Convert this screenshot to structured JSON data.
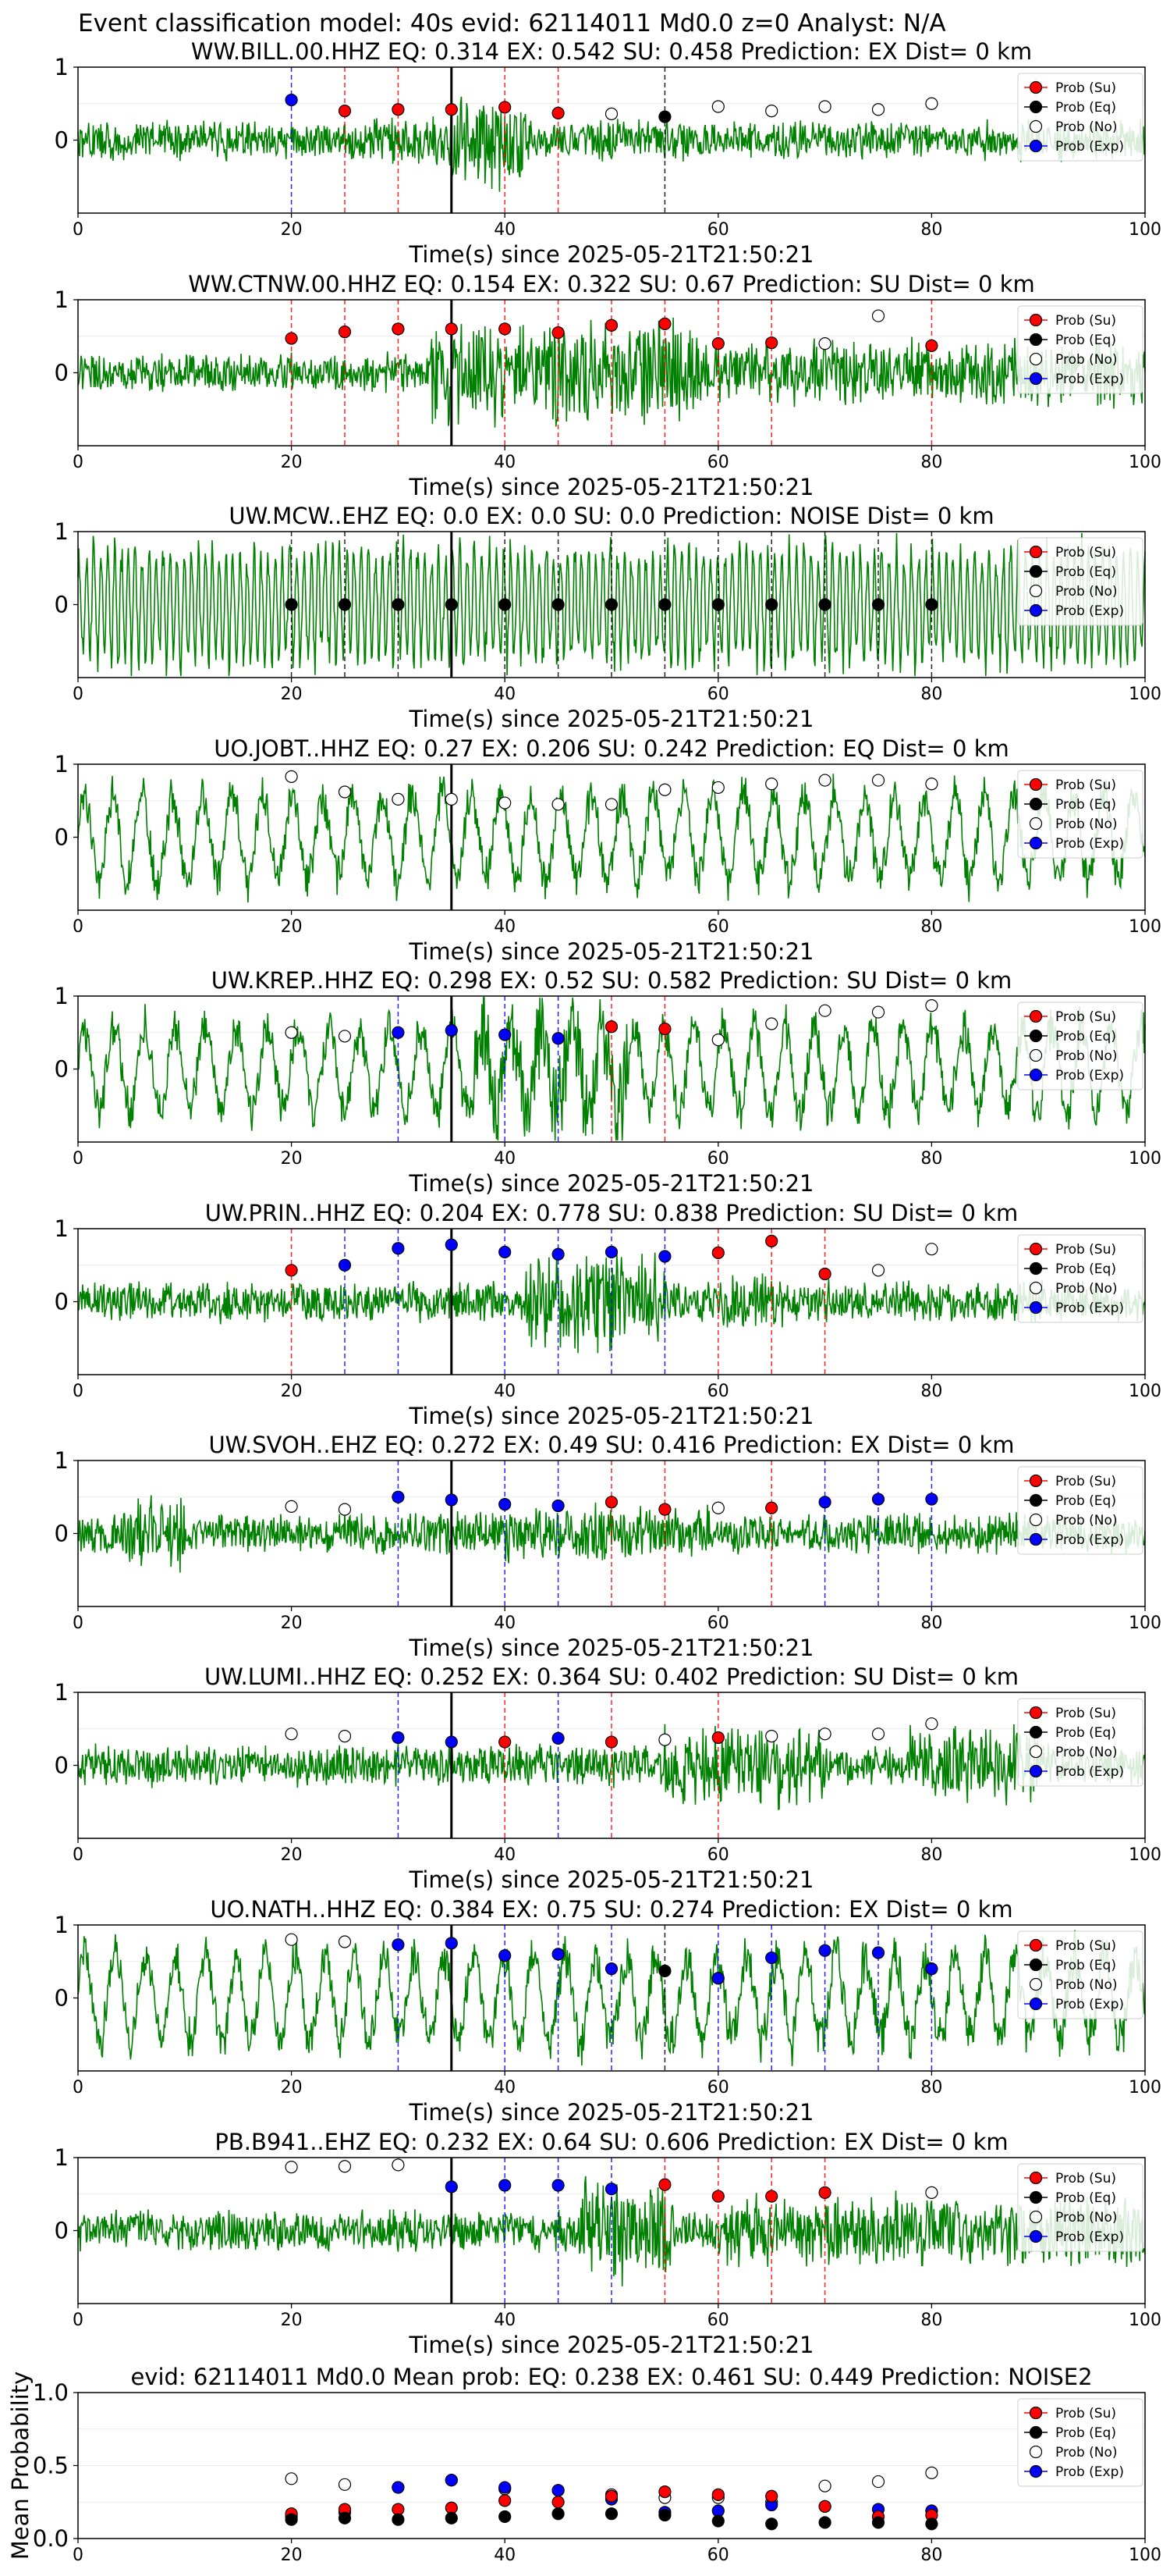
{
  "figure_title": "Event classification model: 40s evid: 62114011 Md0.0 z=0 Analyst: N/A",
  "colors": {
    "su": "#ff0000",
    "eq": "#000000",
    "no": "#ffffff",
    "exp": "#0000ff",
    "wave": "#008000",
    "pick": "#000000"
  },
  "legend_labels": [
    "Prob (Su)",
    "Prob (Eq)",
    "Prob (No)",
    "Prob (Exp)"
  ],
  "chart_data": [
    {
      "type": "scatter",
      "title": "WW.BILL.00.HHZ   EQ: 0.314  EX: 0.542  SU: 0.458   Prediction: EX    Dist= 0 km",
      "xlabel": "Time(s) since 2025-05-21T21:50:21",
      "xlim": [
        0,
        100
      ],
      "ylim": [
        -1,
        1
      ],
      "xticks": [
        "0",
        "20",
        "40",
        "60",
        "80",
        "100"
      ],
      "yticks": [
        "1",
        "0"
      ],
      "pick_time": 35,
      "wave_seed": 1,
      "wave_style": "noisy",
      "wave_bursts": [
        [
          35,
          42,
          2.4
        ],
        [
          28,
          35,
          1.3
        ]
      ],
      "series": [
        {
          "name": "Prob (Exp)",
          "x": [
            20
          ],
          "y": [
            0.55
          ]
        },
        {
          "name": "Prob (Su)",
          "x": [
            25,
            30,
            35,
            40,
            45
          ],
          "y": [
            0.4,
            0.42,
            0.42,
            0.45,
            0.37
          ]
        },
        {
          "name": "Prob (Eq)",
          "x": [
            55
          ],
          "y": [
            0.32
          ]
        },
        {
          "name": "Prob (No)",
          "x": [
            50,
            60,
            65,
            70,
            75,
            80
          ],
          "y": [
            0.36,
            0.46,
            0.4,
            0.46,
            0.42,
            0.5
          ]
        }
      ]
    },
    {
      "type": "scatter",
      "title": "WW.CTNW.00.HHZ   EQ: 0.154  EX: 0.322  SU: 0.67   Prediction: SU    Dist= 0 km",
      "xlabel": "Time(s) since 2025-05-21T21:50:21",
      "xlim": [
        0,
        100
      ],
      "ylim": [
        -1,
        1
      ],
      "xticks": [
        "0",
        "20",
        "40",
        "60",
        "80",
        "100"
      ],
      "yticks": [
        "1",
        "0"
      ],
      "pick_time": 35,
      "wave_seed": 2,
      "wave_style": "noisy",
      "wave_bursts": [
        [
          33,
          58,
          2.6
        ],
        [
          58,
          100,
          1.6
        ]
      ],
      "series": [
        {
          "name": "Prob (Su)",
          "x": [
            20,
            25,
            30,
            35,
            40,
            45,
            50,
            55,
            60,
            65,
            80
          ],
          "y": [
            0.47,
            0.56,
            0.6,
            0.6,
            0.6,
            0.55,
            0.65,
            0.67,
            0.4,
            0.41,
            0.37
          ]
        },
        {
          "name": "Prob (No)",
          "x": [
            70,
            75
          ],
          "y": [
            0.4,
            0.78
          ]
        }
      ]
    },
    {
      "type": "scatter",
      "title": "UW.MCW..EHZ   EQ: 0.0  EX: 0.0  SU: 0.0   Prediction: NOISE    Dist= 0 km",
      "xlabel": "Time(s) since 2025-05-21T21:50:21",
      "xlim": [
        0,
        100
      ],
      "ylim": [
        -1,
        1
      ],
      "xticks": [
        "0",
        "20",
        "40",
        "60",
        "80",
        "100"
      ],
      "yticks": [
        "1",
        "0"
      ],
      "pick_time": 35,
      "wave_seed": 3,
      "wave_style": "periodic",
      "wave_bursts": [],
      "series": [
        {
          "name": "Prob (Eq)",
          "x": [
            20,
            25,
            30,
            35,
            40,
            45,
            50,
            55,
            60,
            65,
            70,
            75,
            80
          ],
          "y": [
            0,
            0,
            0,
            0,
            0,
            0,
            0,
            0,
            0,
            0,
            0,
            0,
            0
          ]
        }
      ]
    },
    {
      "type": "scatter",
      "title": "UO.JOBT..HHZ   EQ: 0.27  EX: 0.206  SU: 0.242   Prediction: EQ    Dist= 0 km",
      "xlabel": "Time(s) since 2025-05-21T21:50:21",
      "xlim": [
        0,
        100
      ],
      "ylim": [
        -1,
        1
      ],
      "xticks": [
        "0",
        "20",
        "40",
        "60",
        "80",
        "100"
      ],
      "yticks": [
        "1",
        "0"
      ],
      "pick_time": 35,
      "wave_seed": 4,
      "wave_style": "slow",
      "wave_bursts": [],
      "series": [
        {
          "name": "Prob (No)",
          "x": [
            20,
            25,
            30,
            35,
            40,
            45,
            50,
            55,
            60,
            65,
            70,
            75,
            80
          ],
          "y": [
            0.83,
            0.62,
            0.52,
            0.52,
            0.47,
            0.45,
            0.45,
            0.65,
            0.68,
            0.73,
            0.78,
            0.78,
            0.73
          ]
        }
      ]
    },
    {
      "type": "scatter",
      "title": "UW.KREP..HHZ   EQ: 0.298  EX: 0.52  SU: 0.582   Prediction: SU    Dist= 0 km",
      "xlabel": "Time(s) since 2025-05-21T21:50:21",
      "xlim": [
        0,
        100
      ],
      "ylim": [
        -1,
        1
      ],
      "xticks": [
        "0",
        "20",
        "40",
        "60",
        "80",
        "100"
      ],
      "yticks": [
        "1",
        "0"
      ],
      "pick_time": 35,
      "wave_seed": 5,
      "wave_style": "slow",
      "wave_bursts": [
        [
          37,
          52,
          2.6
        ]
      ],
      "series": [
        {
          "name": "Prob (No)",
          "x": [
            20,
            25,
            60,
            65,
            70,
            75,
            80
          ],
          "y": [
            0.5,
            0.45,
            0.4,
            0.62,
            0.8,
            0.78,
            0.87
          ]
        },
        {
          "name": "Prob (Exp)",
          "x": [
            30,
            35,
            40,
            45
          ],
          "y": [
            0.5,
            0.53,
            0.47,
            0.42
          ]
        },
        {
          "name": "Prob (Su)",
          "x": [
            50,
            55
          ],
          "y": [
            0.58,
            0.55
          ]
        }
      ]
    },
    {
      "type": "scatter",
      "title": "UW.PRIN..HHZ   EQ: 0.204  EX: 0.778  SU: 0.838   Prediction: SU    Dist= 0 km",
      "xlabel": "Time(s) since 2025-05-21T21:50:21",
      "xlim": [
        0,
        100
      ],
      "ylim": [
        -1,
        1
      ],
      "xticks": [
        "0",
        "20",
        "40",
        "60",
        "80",
        "100"
      ],
      "yticks": [
        "1",
        "0"
      ],
      "pick_time": 35,
      "wave_seed": 6,
      "wave_style": "noisy",
      "wave_bursts": [
        [
          42,
          55,
          2.5
        ],
        [
          60,
          66,
          1.4
        ]
      ],
      "series": [
        {
          "name": "Prob (Su)",
          "x": [
            20,
            60,
            65,
            70
          ],
          "y": [
            0.43,
            0.67,
            0.83,
            0.38
          ]
        },
        {
          "name": "Prob (Exp)",
          "x": [
            25,
            30,
            35,
            40,
            45,
            50,
            55
          ],
          "y": [
            0.5,
            0.73,
            0.78,
            0.68,
            0.65,
            0.68,
            0.62
          ]
        },
        {
          "name": "Prob (No)",
          "x": [
            75,
            80
          ],
          "y": [
            0.43,
            0.72
          ]
        }
      ]
    },
    {
      "type": "scatter",
      "title": "UW.SVOH..EHZ   EQ: 0.272  EX: 0.49  SU: 0.416   Prediction: EX    Dist= 0 km",
      "xlabel": "Time(s) since 2025-05-21T21:50:21",
      "xlim": [
        0,
        100
      ],
      "ylim": [
        -1,
        1
      ],
      "xticks": [
        "0",
        "20",
        "40",
        "60",
        "80",
        "100"
      ],
      "yticks": [
        "1",
        "0"
      ],
      "pick_time": 35,
      "wave_seed": 7,
      "wave_style": "noisy",
      "wave_bursts": [
        [
          4,
          10,
          2.0
        ],
        [
          40,
          60,
          1.4
        ]
      ],
      "series": [
        {
          "name": "Prob (No)",
          "x": [
            20,
            25,
            60
          ],
          "y": [
            0.37,
            0.33,
            0.35
          ]
        },
        {
          "name": "Prob (Exp)",
          "x": [
            30,
            35,
            40,
            45,
            70,
            75,
            80
          ],
          "y": [
            0.5,
            0.46,
            0.4,
            0.38,
            0.43,
            0.47,
            0.47
          ]
        },
        {
          "name": "Prob (Su)",
          "x": [
            50,
            55,
            65
          ],
          "y": [
            0.43,
            0.33,
            0.35
          ]
        }
      ]
    },
    {
      "type": "scatter",
      "title": "UW.LUMI..HHZ   EQ: 0.252  EX: 0.364  SU: 0.402   Prediction: SU    Dist= 0 km",
      "xlabel": "Time(s) since 2025-05-21T21:50:21",
      "xlim": [
        0,
        100
      ],
      "ylim": [
        -1,
        1
      ],
      "xticks": [
        "0",
        "20",
        "40",
        "60",
        "80",
        "100"
      ],
      "yticks": [
        "1",
        "0"
      ],
      "pick_time": 35,
      "wave_seed": 8,
      "wave_style": "noisy",
      "wave_bursts": [
        [
          55,
          70,
          2.0
        ],
        [
          78,
          90,
          2.0
        ]
      ],
      "series": [
        {
          "name": "Prob (No)",
          "x": [
            20,
            25,
            55,
            65,
            70,
            75,
            80
          ],
          "y": [
            0.43,
            0.4,
            0.35,
            0.4,
            0.43,
            0.43,
            0.57
          ]
        },
        {
          "name": "Prob (Exp)",
          "x": [
            30,
            35,
            45
          ],
          "y": [
            0.38,
            0.32,
            0.37
          ]
        },
        {
          "name": "Prob (Su)",
          "x": [
            40,
            50,
            60
          ],
          "y": [
            0.32,
            0.32,
            0.38
          ]
        }
      ]
    },
    {
      "type": "scatter",
      "title": "UO.NATH..HHZ   EQ: 0.384  EX: 0.75  SU: 0.274   Prediction: EX    Dist= 0 km",
      "xlabel": "Time(s) since 2025-05-21T21:50:21",
      "xlim": [
        0,
        100
      ],
      "ylim": [
        -1,
        1
      ],
      "xticks": [
        "0",
        "20",
        "40",
        "60",
        "80",
        "100"
      ],
      "yticks": [
        "1",
        "0"
      ],
      "pick_time": 35,
      "wave_seed": 9,
      "wave_style": "slow",
      "wave_bursts": [
        [
          45,
          100,
          1.2
        ]
      ],
      "series": [
        {
          "name": "Prob (No)",
          "x": [
            20,
            25
          ],
          "y": [
            0.8,
            0.77
          ]
        },
        {
          "name": "Prob (Exp)",
          "x": [
            30,
            35,
            40,
            45,
            50,
            60,
            65,
            70,
            75,
            80
          ],
          "y": [
            0.73,
            0.75,
            0.58,
            0.6,
            0.4,
            0.27,
            0.55,
            0.65,
            0.62,
            0.4
          ]
        },
        {
          "name": "Prob (Eq)",
          "x": [
            55
          ],
          "y": [
            0.37
          ]
        }
      ]
    },
    {
      "type": "scatter",
      "title": "PB.B941..EHZ   EQ: 0.232  EX: 0.64  SU: 0.606   Prediction: EX    Dist= 0 km",
      "xlabel": "Time(s) since 2025-05-21T21:50:21",
      "xlim": [
        0,
        100
      ],
      "ylim": [
        -1,
        1
      ],
      "xticks": [
        "0",
        "20",
        "40",
        "60",
        "80",
        "100"
      ],
      "yticks": [
        "1",
        "0"
      ],
      "pick_time": 35,
      "wave_seed": 10,
      "wave_style": "noisy",
      "wave_bursts": [
        [
          47,
          56,
          2.6
        ],
        [
          60,
          100,
          1.8
        ]
      ],
      "series": [
        {
          "name": "Prob (No)",
          "x": [
            20,
            25,
            30,
            80
          ],
          "y": [
            0.87,
            0.88,
            0.9,
            0.52
          ]
        },
        {
          "name": "Prob (Exp)",
          "x": [
            35,
            40,
            45,
            50
          ],
          "y": [
            0.6,
            0.62,
            0.62,
            0.57
          ]
        },
        {
          "name": "Prob (Su)",
          "x": [
            55,
            60,
            65,
            70
          ],
          "y": [
            0.63,
            0.47,
            0.47,
            0.52
          ]
        }
      ]
    },
    {
      "type": "scatter",
      "title": "evid: 62114011  Md0.0   Mean prob:   EQ: 0.238  EX: 0.461  SU: 0.449   Prediction: NOISE2",
      "xlabel": "",
      "ylabel": "Mean Probability",
      "xlim": [
        0,
        100
      ],
      "ylim": [
        0,
        1
      ],
      "xticks": [
        "0",
        "20",
        "40",
        "60",
        "80",
        "100"
      ],
      "yticks": [
        "1.0",
        "0.5",
        "0.0"
      ],
      "pick_time": null,
      "series": [
        {
          "name": "Prob (No)",
          "x": [
            20,
            25,
            30,
            35,
            40,
            45,
            50,
            55,
            60,
            65,
            70,
            75,
            80
          ],
          "y": [
            0.41,
            0.37,
            0.35,
            0.4,
            0.34,
            0.33,
            0.3,
            0.28,
            0.28,
            0.25,
            0.36,
            0.39,
            0.45
          ]
        },
        {
          "name": "Prob (Exp)",
          "x": [
            20,
            25,
            30,
            35,
            40,
            45,
            50,
            55,
            60,
            65,
            70,
            75,
            80
          ],
          "y": [
            0.15,
            0.18,
            0.35,
            0.4,
            0.35,
            0.33,
            0.27,
            0.18,
            0.19,
            0.23,
            0.22,
            0.2,
            0.19
          ]
        },
        {
          "name": "Prob (Su)",
          "x": [
            20,
            25,
            30,
            35,
            40,
            45,
            50,
            55,
            60,
            65,
            70,
            75,
            80
          ],
          "y": [
            0.17,
            0.2,
            0.2,
            0.21,
            0.26,
            0.25,
            0.29,
            0.32,
            0.3,
            0.29,
            0.22,
            0.15,
            0.16
          ]
        },
        {
          "name": "Prob (Eq)",
          "x": [
            20,
            25,
            30,
            35,
            40,
            45,
            50,
            55,
            60,
            65,
            70,
            75,
            80
          ],
          "y": [
            0.13,
            0.14,
            0.13,
            0.14,
            0.15,
            0.17,
            0.17,
            0.16,
            0.12,
            0.1,
            0.11,
            0.11,
            0.1
          ]
        }
      ]
    }
  ]
}
